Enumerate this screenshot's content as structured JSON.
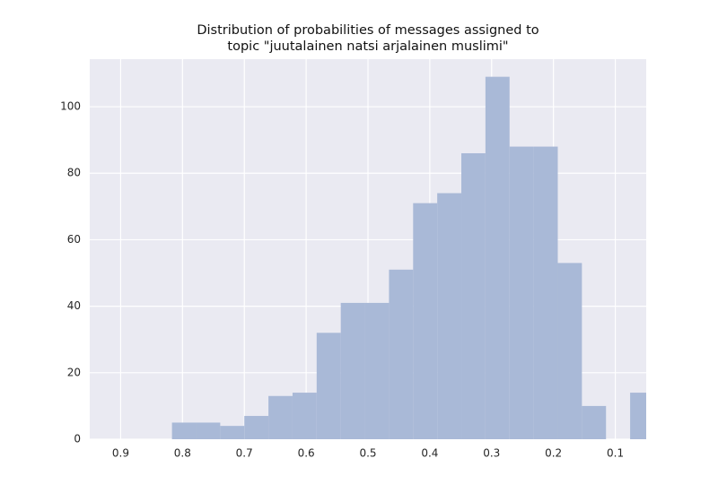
{
  "chart_data": {
    "type": "histogram",
    "title": [
      "Distribution of probabilities of messages assigned to",
      "topic \"juutalainen natsi arjalainen muslimi\""
    ],
    "bins": [
      0.817,
      0.778,
      0.739,
      0.7,
      0.661,
      0.622,
      0.583,
      0.544,
      0.505,
      0.466,
      0.427,
      0.388,
      0.349,
      0.31,
      0.271,
      0.232,
      0.193,
      0.154,
      0.115,
      0.076,
      0.037
    ],
    "values": [
      5,
      5,
      4,
      7,
      13,
      14,
      32,
      41,
      41,
      51,
      71,
      74,
      86,
      109,
      88,
      88,
      53,
      10,
      0,
      14
    ],
    "color": "#a9b9d7",
    "xlim": [
      0.95,
      0.05
    ],
    "xticks": [
      0.9,
      0.8,
      0.7,
      0.6,
      0.5,
      0.4,
      0.3,
      0.2,
      0.1
    ],
    "ylim": [
      0,
      114.3
    ],
    "yticks": [
      0,
      20,
      40,
      60,
      80,
      100
    ],
    "grid": true
  }
}
